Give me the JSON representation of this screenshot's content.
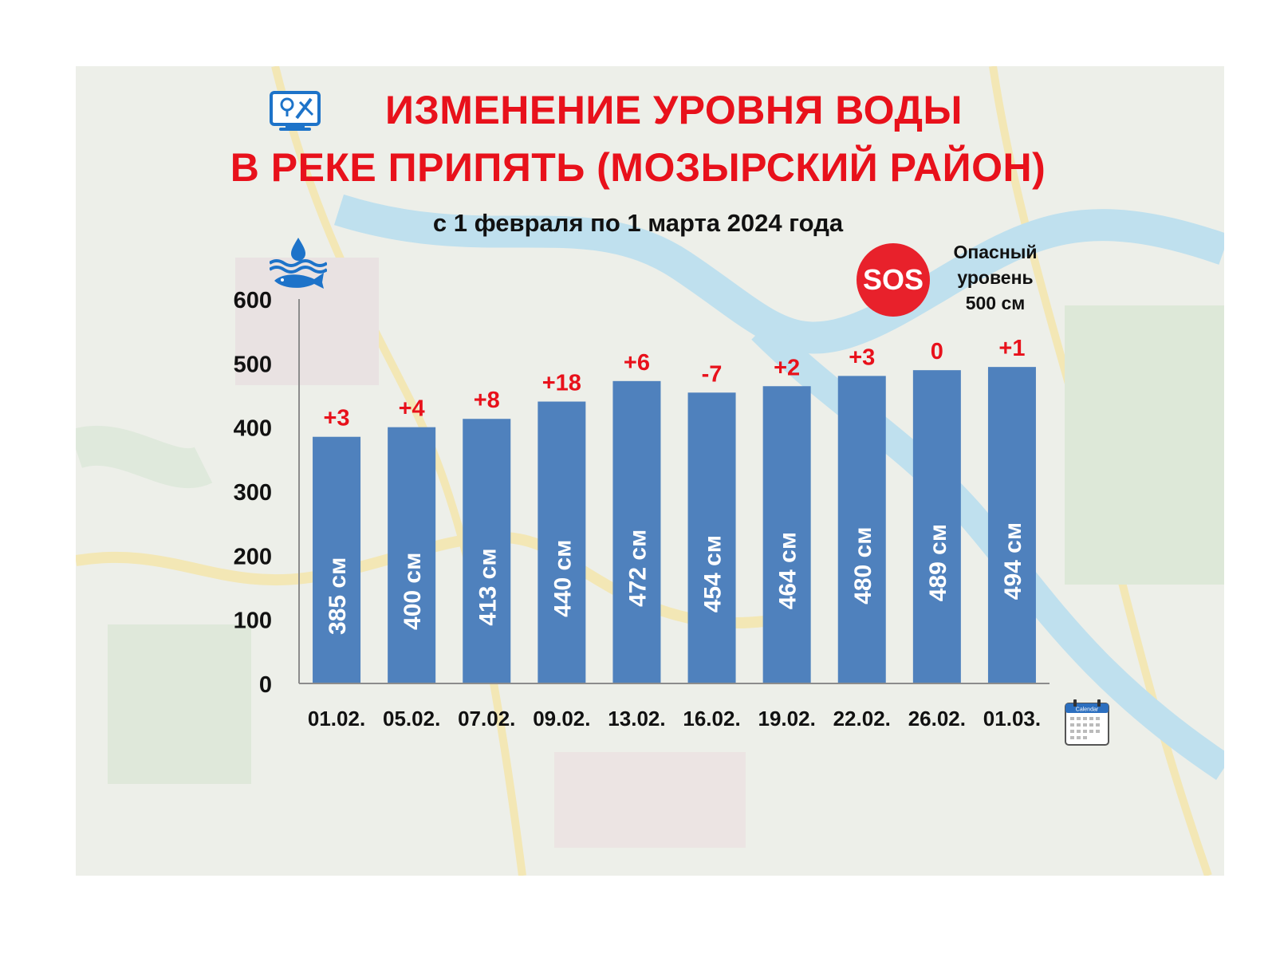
{
  "header": {
    "title_line_1": "ИЗМЕНЕНИЕ УРОВНЯ ВОДЫ",
    "title_line_2": "В РЕКЕ ПРИПЯТЬ (МОЗЫРСКИЙ РАЙОН)",
    "subtitle": "с 1 февраля по 1 марта 2024 года"
  },
  "danger": {
    "badge_text": "SOS",
    "note_line_1": "Опасный",
    "note_line_2": "уровень",
    "note_line_3": "500 см",
    "badge_color": "#e8212b"
  },
  "icons": [
    "map-app-icon",
    "water-fish-icon",
    "sos-icon",
    "calendar-icon"
  ],
  "calendar_label": "Calendar",
  "chart_data": {
    "type": "bar",
    "title": "",
    "xlabel": "",
    "ylabel": "",
    "ylim": [
      0,
      600
    ],
    "yticks": [
      0,
      100,
      200,
      300,
      400,
      500,
      600
    ],
    "grid": false,
    "categories": [
      "01.02.",
      "05.02.",
      "07.02.",
      "09.02.",
      "13.02.",
      "16.02.",
      "19.02.",
      "22.02.",
      "26.02.",
      "01.03."
    ],
    "values": [
      385,
      400,
      413,
      440,
      472,
      454,
      464,
      480,
      489,
      494
    ],
    "bar_labels": [
      "385 см",
      "400 см",
      "413 см",
      "440 см",
      "472 см",
      "454 см",
      "464 см",
      "480 см",
      "489 см",
      "494 см"
    ],
    "change_labels": [
      "+3",
      "+4",
      "+8",
      "+18",
      "+6",
      "-7",
      "+2",
      "+3",
      "0",
      "+1"
    ],
    "bar_color": "#4f81bd",
    "change_color": "#e8111b"
  }
}
